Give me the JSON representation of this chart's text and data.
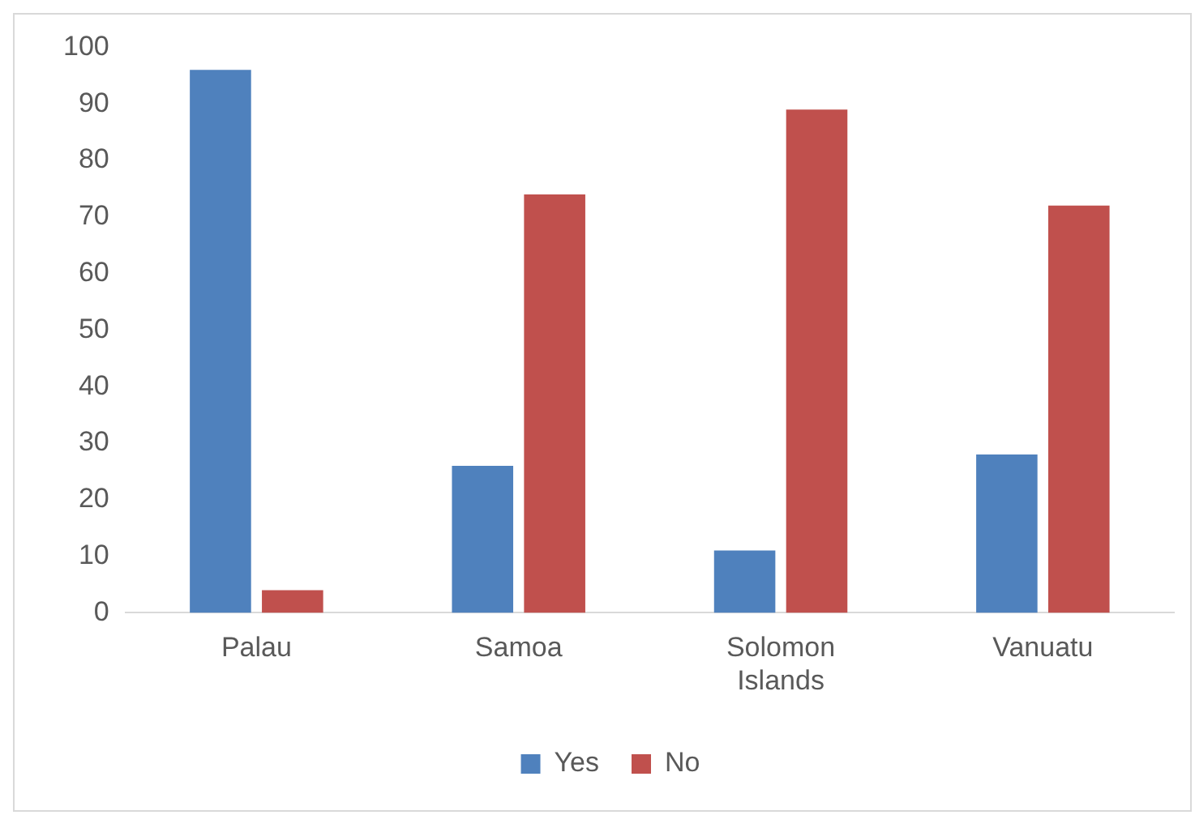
{
  "chart_data": {
    "type": "bar",
    "categories": [
      "Palau",
      "Samoa",
      "Solomon Islands",
      "Vanuatu"
    ],
    "series": [
      {
        "name": "Yes",
        "color": "#4f81bd",
        "values": [
          96,
          26,
          11,
          28
        ]
      },
      {
        "name": "No",
        "color": "#c0504d",
        "values": [
          4,
          74,
          89,
          72
        ]
      }
    ],
    "ylim": [
      0,
      100
    ],
    "yticks": [
      0,
      10,
      20,
      30,
      40,
      50,
      60,
      70,
      80,
      90,
      100
    ],
    "grid": false,
    "legend": "bottom"
  }
}
